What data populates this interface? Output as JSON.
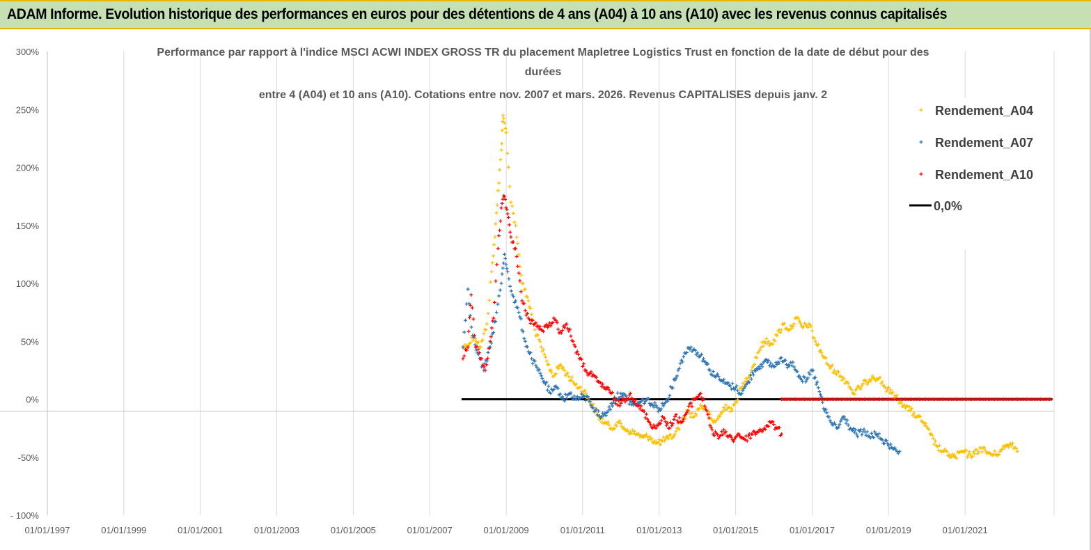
{
  "banner": {
    "title": "ADAM Informe. Evolution historique des performances en euros pour des détentions de 4 ans (A04) à 10 ans (A10) avec les revenus connus capitalisés"
  },
  "colors": {
    "banner_bg": "#c6e0b4",
    "banner_border": "#e8b400",
    "A04": "#ffc000",
    "A07": "#2e75b6",
    "A10": "#ff0000",
    "zero_line": "#000000",
    "grid": "#d9d9d9"
  },
  "chart_data": {
    "type": "scatter",
    "title_lines": [
      "Performance par rapport à l'indice MSCI ACWI INDEX GROSS TR  du placement Mapletree Logistics Trust en fonction de la date de début pour des",
      "durées",
      "entre 4 (A04) et 10 ans (A10).  Cotations entre nov. 2007 et mars. 2026. Revenus CAPITALISES depuis janv. 2"
    ],
    "x_axis": {
      "type": "date",
      "range": [
        "1997-01-01",
        "2023-05-01"
      ],
      "tick_labels": [
        "01/01/1997",
        "01/01/1999",
        "01/01/2001",
        "01/01/2003",
        "01/01/2005",
        "01/01/2007",
        "01/01/2009",
        "01/01/2011",
        "01/01/2013",
        "01/01/2015",
        "01/01/2017",
        "01/01/2019",
        "01/01/2021"
      ]
    },
    "y_axis": {
      "range": [
        -100,
        300
      ],
      "unit": "%",
      "tick_values": [
        -100,
        -50,
        0,
        50,
        100,
        150,
        200,
        250,
        300
      ],
      "tick_labels": [
        "- 100%",
        "-50%",
        "0%",
        "50%",
        "100%",
        "150%",
        "200%",
        "250%",
        "300%"
      ]
    },
    "grid": "vertical",
    "legend_position": "top-right",
    "series": [
      {
        "name": "Rendement_A04",
        "marker": "+",
        "points": [
          [
            "2007-11-15",
            45
          ],
          [
            "2008-01-15",
            48
          ],
          [
            "2008-03-01",
            55
          ],
          [
            "2008-05-01",
            45
          ],
          [
            "2008-07-01",
            65
          ],
          [
            "2008-08-15",
            110
          ],
          [
            "2008-09-15",
            140
          ],
          [
            "2008-10-15",
            180
          ],
          [
            "2008-11-15",
            215
          ],
          [
            "2008-12-01",
            245
          ],
          [
            "2009-01-01",
            230
          ],
          [
            "2009-02-15",
            170
          ],
          [
            "2009-04-01",
            150
          ],
          [
            "2009-06-01",
            100
          ],
          [
            "2009-08-01",
            85
          ],
          [
            "2009-10-01",
            60
          ],
          [
            "2009-12-01",
            45
          ],
          [
            "2010-02-01",
            30
          ],
          [
            "2010-04-01",
            20
          ],
          [
            "2010-06-01",
            30
          ],
          [
            "2010-08-01",
            22
          ],
          [
            "2010-10-01",
            15
          ],
          [
            "2010-12-01",
            10
          ],
          [
            "2011-02-01",
            5
          ],
          [
            "2011-04-01",
            -5
          ],
          [
            "2011-06-01",
            -15
          ],
          [
            "2011-08-01",
            -20
          ],
          [
            "2011-10-01",
            -25
          ],
          [
            "2011-12-01",
            -20
          ],
          [
            "2012-02-01",
            -25
          ],
          [
            "2012-04-01",
            -28
          ],
          [
            "2012-06-01",
            -30
          ],
          [
            "2012-08-01",
            -33
          ],
          [
            "2012-10-01",
            -32
          ],
          [
            "2012-12-01",
            -38
          ],
          [
            "2013-02-01",
            -36
          ],
          [
            "2013-04-01",
            -34
          ],
          [
            "2013-06-01",
            -30
          ],
          [
            "2013-08-01",
            -20
          ],
          [
            "2013-10-01",
            -10
          ],
          [
            "2013-12-01",
            -15
          ],
          [
            "2014-02-01",
            -5
          ],
          [
            "2014-04-01",
            -10
          ],
          [
            "2014-06-01",
            -20
          ],
          [
            "2014-08-01",
            -15
          ],
          [
            "2014-10-01",
            -5
          ],
          [
            "2014-12-01",
            -10
          ],
          [
            "2015-02-01",
            5
          ],
          [
            "2015-04-01",
            15
          ],
          [
            "2015-06-01",
            25
          ],
          [
            "2015-08-01",
            40
          ],
          [
            "2015-10-01",
            50
          ],
          [
            "2015-12-01",
            48
          ],
          [
            "2016-02-01",
            55
          ],
          [
            "2016-04-01",
            65
          ],
          [
            "2016-06-01",
            60
          ],
          [
            "2016-08-01",
            70
          ],
          [
            "2016-10-01",
            62
          ],
          [
            "2016-12-01",
            65
          ],
          [
            "2017-02-01",
            50
          ],
          [
            "2017-04-01",
            40
          ],
          [
            "2017-06-01",
            30
          ],
          [
            "2017-08-01",
            25
          ],
          [
            "2017-10-01",
            20
          ],
          [
            "2017-12-01",
            15
          ],
          [
            "2018-02-01",
            5
          ],
          [
            "2018-04-01",
            10
          ],
          [
            "2018-06-01",
            15
          ],
          [
            "2018-08-01",
            20
          ],
          [
            "2018-10-01",
            18
          ],
          [
            "2018-12-01",
            10
          ],
          [
            "2019-02-01",
            5
          ],
          [
            "2019-04-01",
            0
          ],
          [
            "2019-06-01",
            -5
          ],
          [
            "2019-08-01",
            -10
          ],
          [
            "2019-10-01",
            -15
          ],
          [
            "2019-12-01",
            -20
          ],
          [
            "2020-02-01",
            -30
          ],
          [
            "2020-04-01",
            -40
          ],
          [
            "2020-06-01",
            -45
          ],
          [
            "2020-08-01",
            -48
          ],
          [
            "2020-10-01",
            -50
          ],
          [
            "2020-12-01",
            -45
          ],
          [
            "2021-02-01",
            -48
          ],
          [
            "2021-04-01",
            -47
          ],
          [
            "2021-06-01",
            -42
          ],
          [
            "2021-08-01",
            -46
          ],
          [
            "2021-10-01",
            -48
          ],
          [
            "2021-12-01",
            -45
          ],
          [
            "2022-02-01",
            -40
          ],
          [
            "2022-04-01",
            -38
          ],
          [
            "2022-05-15",
            -45
          ]
        ]
      },
      {
        "name": "Rendement_A07",
        "marker": "+",
        "points": [
          [
            "2007-11-15",
            45
          ],
          [
            "2008-01-01",
            95
          ],
          [
            "2008-02-15",
            55
          ],
          [
            "2008-04-01",
            40
          ],
          [
            "2008-06-01",
            25
          ],
          [
            "2008-08-01",
            45
          ],
          [
            "2008-10-01",
            75
          ],
          [
            "2008-11-15",
            100
          ],
          [
            "2008-12-15",
            125
          ],
          [
            "2009-01-15",
            110
          ],
          [
            "2009-03-01",
            90
          ],
          [
            "2009-05-01",
            75
          ],
          [
            "2009-07-01",
            50
          ],
          [
            "2009-09-01",
            35
          ],
          [
            "2009-11-01",
            25
          ],
          [
            "2010-01-01",
            15
          ],
          [
            "2010-03-01",
            5
          ],
          [
            "2010-05-01",
            10
          ],
          [
            "2010-07-01",
            0
          ],
          [
            "2010-09-01",
            5
          ],
          [
            "2010-11-01",
            0
          ],
          [
            "2011-01-01",
            2
          ],
          [
            "2011-03-01",
            0
          ],
          [
            "2011-05-01",
            -10
          ],
          [
            "2011-07-01",
            -15
          ],
          [
            "2011-09-01",
            -10
          ],
          [
            "2011-11-01",
            0
          ],
          [
            "2012-01-01",
            5
          ],
          [
            "2012-03-01",
            0
          ],
          [
            "2012-05-01",
            -5
          ],
          [
            "2012-07-01",
            -3
          ],
          [
            "2012-09-01",
            0
          ],
          [
            "2012-11-01",
            -5
          ],
          [
            "2013-01-01",
            -8
          ],
          [
            "2013-03-01",
            -3
          ],
          [
            "2013-05-01",
            10
          ],
          [
            "2013-07-01",
            25
          ],
          [
            "2013-09-01",
            40
          ],
          [
            "2013-11-01",
            45
          ],
          [
            "2014-01-01",
            40
          ],
          [
            "2014-03-01",
            35
          ],
          [
            "2014-05-01",
            25
          ],
          [
            "2014-07-01",
            20
          ],
          [
            "2014-09-01",
            15
          ],
          [
            "2014-11-01",
            12
          ],
          [
            "2015-01-01",
            10
          ],
          [
            "2015-03-01",
            5
          ],
          [
            "2015-05-01",
            15
          ],
          [
            "2015-07-01",
            25
          ],
          [
            "2015-09-01",
            30
          ],
          [
            "2015-11-01",
            32
          ],
          [
            "2016-01-01",
            28
          ],
          [
            "2016-03-01",
            35
          ],
          [
            "2016-05-01",
            30
          ],
          [
            "2016-07-01",
            32
          ],
          [
            "2016-09-01",
            20
          ],
          [
            "2016-11-01",
            15
          ],
          [
            "2017-01-01",
            25
          ],
          [
            "2017-03-01",
            10
          ],
          [
            "2017-05-01",
            -10
          ],
          [
            "2017-07-01",
            -20
          ],
          [
            "2017-09-01",
            -25
          ],
          [
            "2017-11-01",
            -15
          ],
          [
            "2018-01-01",
            -25
          ],
          [
            "2018-03-01",
            -30
          ],
          [
            "2018-05-01",
            -28
          ],
          [
            "2018-07-01",
            -32
          ],
          [
            "2018-09-01",
            -30
          ],
          [
            "2018-11-01",
            -35
          ],
          [
            "2019-01-01",
            -40
          ],
          [
            "2019-03-01",
            -42
          ],
          [
            "2019-04-15",
            -45
          ]
        ]
      },
      {
        "name": "Rendement_A10",
        "marker": "+",
        "points": [
          [
            "2007-11-15",
            35
          ],
          [
            "2008-01-01",
            45
          ],
          [
            "2008-02-01",
            90
          ],
          [
            "2008-03-15",
            45
          ],
          [
            "2008-05-01",
            35
          ],
          [
            "2008-06-15",
            25
          ],
          [
            "2008-08-01",
            50
          ],
          [
            "2008-09-01",
            70
          ],
          [
            "2008-10-15",
            130
          ],
          [
            "2008-11-15",
            165
          ],
          [
            "2008-12-15",
            175
          ],
          [
            "2009-01-15",
            160
          ],
          [
            "2009-02-15",
            140
          ],
          [
            "2009-04-01",
            130
          ],
          [
            "2009-06-01",
            85
          ],
          [
            "2009-08-01",
            70
          ],
          [
            "2009-10-01",
            65
          ],
          [
            "2009-12-01",
            60
          ],
          [
            "2010-02-01",
            62
          ],
          [
            "2010-04-01",
            70
          ],
          [
            "2010-06-01",
            58
          ],
          [
            "2010-08-01",
            65
          ],
          [
            "2010-10-01",
            50
          ],
          [
            "2010-12-01",
            35
          ],
          [
            "2011-02-01",
            25
          ],
          [
            "2011-04-01",
            20
          ],
          [
            "2011-06-01",
            15
          ],
          [
            "2011-08-01",
            10
          ],
          [
            "2011-10-01",
            5
          ],
          [
            "2011-12-01",
            -5
          ],
          [
            "2012-02-01",
            0
          ],
          [
            "2012-04-01",
            5
          ],
          [
            "2012-06-01",
            -5
          ],
          [
            "2012-08-01",
            -10
          ],
          [
            "2012-10-01",
            -20
          ],
          [
            "2012-12-01",
            -25
          ],
          [
            "2013-02-01",
            -15
          ],
          [
            "2013-04-01",
            -25
          ],
          [
            "2013-06-01",
            -15
          ],
          [
            "2013-08-01",
            -20
          ],
          [
            "2013-10-01",
            -10
          ],
          [
            "2013-12-01",
            0
          ],
          [
            "2014-02-01",
            5
          ],
          [
            "2014-04-01",
            -10
          ],
          [
            "2014-06-01",
            -30
          ],
          [
            "2014-08-01",
            -32
          ],
          [
            "2014-10-01",
            -28
          ],
          [
            "2014-12-01",
            -35
          ],
          [
            "2015-02-01",
            -30
          ],
          [
            "2015-04-01",
            -35
          ],
          [
            "2015-06-01",
            -30
          ],
          [
            "2015-08-01",
            -28
          ],
          [
            "2015-10-01",
            -25
          ],
          [
            "2015-12-01",
            -20
          ],
          [
            "2016-02-01",
            -25
          ],
          [
            "2016-03-15",
            -30
          ]
        ]
      },
      {
        "name": "0,0%",
        "marker": "line",
        "points": [
          [
            "2007-11-01",
            0
          ],
          [
            "2023-04-15",
            0
          ]
        ]
      }
    ]
  },
  "legend": [
    {
      "label": "Rendement_A04",
      "color": "#ffc000",
      "marker": "+"
    },
    {
      "label": "Rendement_A07",
      "color": "#2e75b6",
      "marker": "+"
    },
    {
      "label": "Rendement_A10",
      "color": "#ff0000",
      "marker": "+"
    },
    {
      "label": "0,0%",
      "color": "#000000",
      "marker": "line"
    }
  ]
}
